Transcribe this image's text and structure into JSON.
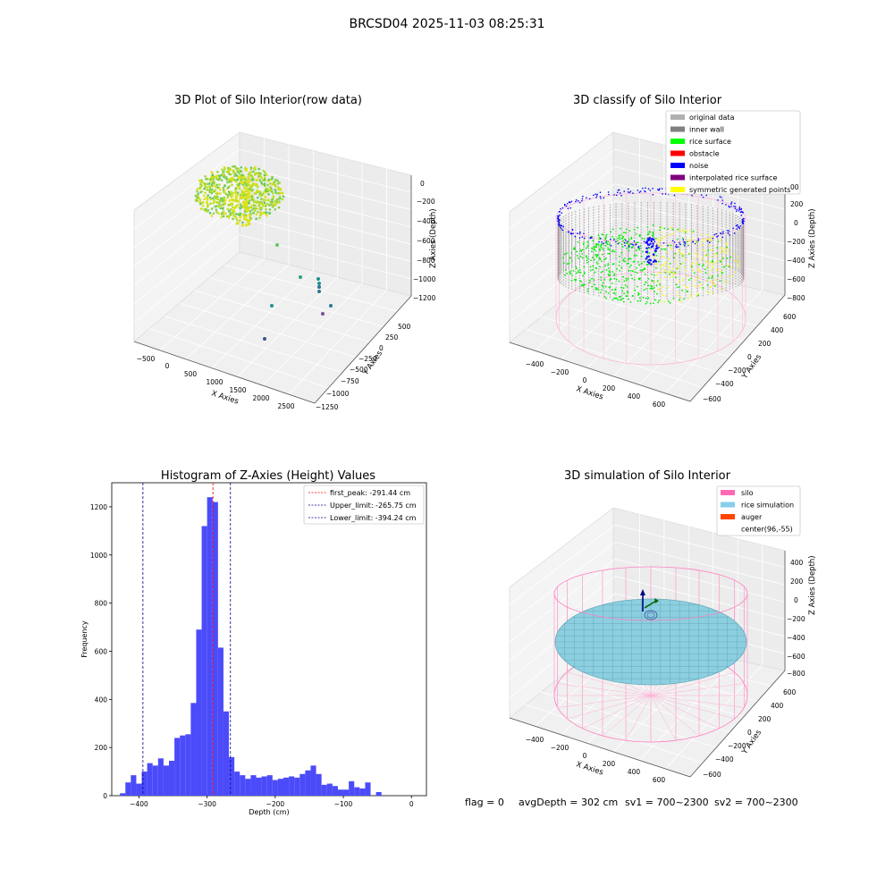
{
  "figure": {
    "title": "BRCSD04 2025-11-03 08:25:31"
  },
  "panels": {
    "raw": {
      "title": "3D Plot of Silo Interior(row data)",
      "xlabel": "X Axies",
      "ylabel": "Y Axies",
      "zlabel": "Z Axies (Depth)",
      "xticks": [
        "−500",
        "0",
        "500",
        "1000",
        "1500",
        "2000",
        "2500"
      ],
      "yticks": [
        "500",
        "250",
        "0",
        "−250",
        "−500",
        "−750",
        "−1000",
        "−1250"
      ],
      "zticks": [
        "0",
        "−200",
        "−400",
        "−600",
        "−800",
        "−1000",
        "−1200"
      ]
    },
    "classify": {
      "title": "3D classify of Silo Interior",
      "xlabel": "X Axies",
      "ylabel": "Y Axies",
      "zlabel": "Z Axies (Depth)",
      "xticks": [
        "−400",
        "−200",
        "0",
        "200",
        "400",
        "600"
      ],
      "yticks": [
        "600",
        "400",
        "200",
        "0",
        "−200",
        "−400",
        "−600"
      ],
      "zticks": [
        "200",
        "0",
        "−200",
        "−400",
        "−600",
        "−800"
      ],
      "zticks_partial": [
        "00"
      ],
      "legend": [
        {
          "label": "original data",
          "color": "#b0b0b0"
        },
        {
          "label": "inner wall",
          "color": "#808080"
        },
        {
          "label": "rice surface",
          "color": "#00ff00"
        },
        {
          "label": "obstacle",
          "color": "#ff0000"
        },
        {
          "label": "noise",
          "color": "#0000ff"
        },
        {
          "label": "interpolated rice surface",
          "color": "#800080"
        },
        {
          "label": "symmetric generated points",
          "color": "#ffff00"
        }
      ]
    },
    "simulation": {
      "title": "3D simulation of Silo Interior",
      "xlabel": "X Axies",
      "ylabel": "Y Axies",
      "zlabel": "Z Axies (Depth)",
      "xticks": [
        "−400",
        "−200",
        "0",
        "200",
        "400",
        "600"
      ],
      "yticks": [
        "600",
        "400",
        "200",
        "0",
        "−200",
        "−400",
        "−600"
      ],
      "zticks": [
        "400",
        "200",
        "0",
        "−200",
        "−400",
        "−600",
        "−800"
      ],
      "legend": [
        {
          "label": "silo",
          "color": "#ff69b4"
        },
        {
          "label": "rice simulation",
          "color": "#87ceeb"
        },
        {
          "label": "auger",
          "color": "#ff4500"
        },
        {
          "label": "center(96,-55)",
          "color": "none"
        }
      ]
    },
    "status": {
      "flag": "flag = 0",
      "avg_depth": "avgDepth = 302 cm",
      "sv1": "sv1 = 700~2300",
      "sv2": "sv2 = 700~2300"
    }
  },
  "colors": {
    "bar": "#4b4bfa",
    "first_peak": "#ff0000",
    "limits": "#00008b"
  },
  "chart_data": {
    "type": "bar",
    "title": "Histogram of Z-Axies (Height) Values",
    "xlabel": "Depth (cm)",
    "ylabel": "Frequency",
    "xlim": [
      -440,
      22
    ],
    "ylim": [
      0,
      1300
    ],
    "xticks": [
      -400,
      -300,
      -200,
      -100,
      0
    ],
    "xtick_labels": [
      "−400",
      "−300",
      "−200",
      "−100",
      "0"
    ],
    "yticks": [
      0,
      200,
      400,
      600,
      800,
      1000,
      1200
    ],
    "ytick_labels": [
      "0",
      "200",
      "400",
      "600",
      "800",
      "1000",
      "1200"
    ],
    "bin_start": -428,
    "bin_width": 8,
    "values": [
      10,
      55,
      85,
      50,
      100,
      135,
      125,
      155,
      125,
      145,
      240,
      250,
      255,
      385,
      690,
      1120,
      1240,
      1220,
      615,
      350,
      160,
      100,
      85,
      70,
      85,
      75,
      80,
      85,
      65,
      70,
      75,
      80,
      75,
      90,
      105,
      125,
      90,
      45,
      50,
      40,
      25,
      25,
      60,
      35,
      30,
      55,
      0,
      15
    ],
    "lines": [
      {
        "label": "first_peak: -291.44 cm",
        "x": -291.44,
        "color": "#ff0000"
      },
      {
        "label": "Upper_limit: -265.75 cm",
        "x": -265.75,
        "color": "#00008b"
      },
      {
        "label": "Lower_limit: -394.24 cm",
        "x": -394.24,
        "color": "#00008b"
      }
    ],
    "legend_position": "top-right",
    "grid": false
  }
}
